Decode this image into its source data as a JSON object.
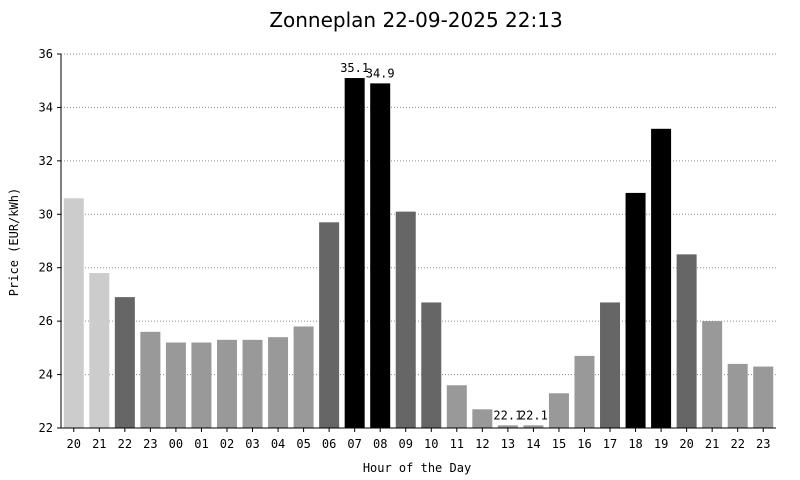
{
  "chart_data": {
    "type": "bar",
    "title": "Zonneplan 22-09-2025 22:13",
    "xlabel": "Hour of the Day",
    "ylabel": "Price (EUR/kWh)",
    "ylim": [
      22,
      36
    ],
    "yticks": [
      22,
      24,
      26,
      28,
      30,
      32,
      34,
      36
    ],
    "grid": true,
    "categories": [
      "20",
      "21",
      "22",
      "23",
      "00",
      "01",
      "02",
      "03",
      "04",
      "05",
      "06",
      "07",
      "08",
      "09",
      "10",
      "11",
      "12",
      "13",
      "14",
      "15",
      "16",
      "17",
      "18",
      "19",
      "20",
      "21",
      "22",
      "23"
    ],
    "values": [
      30.6,
      27.8,
      26.9,
      25.6,
      25.2,
      25.2,
      25.3,
      25.3,
      25.4,
      25.8,
      29.7,
      35.1,
      34.9,
      30.1,
      26.7,
      23.6,
      22.7,
      22.1,
      22.1,
      23.3,
      24.7,
      26.7,
      30.8,
      33.2,
      28.5,
      26.0,
      24.4,
      24.3
    ],
    "colors": [
      "#cccccc",
      "#cccccc",
      "#666666",
      "#999999",
      "#999999",
      "#999999",
      "#999999",
      "#999999",
      "#999999",
      "#999999",
      "#666666",
      "#000000",
      "#000000",
      "#666666",
      "#666666",
      "#999999",
      "#999999",
      "#999999",
      "#999999",
      "#999999",
      "#999999",
      "#666666",
      "#000000",
      "#000000",
      "#666666",
      "#999999",
      "#999999",
      "#999999"
    ],
    "data_labels": [
      {
        "index": 11,
        "text": "35.1"
      },
      {
        "index": 12,
        "text": "34.9"
      },
      {
        "index": 17,
        "text": "22.1"
      },
      {
        "index": 18,
        "text": "22.1"
      }
    ]
  }
}
